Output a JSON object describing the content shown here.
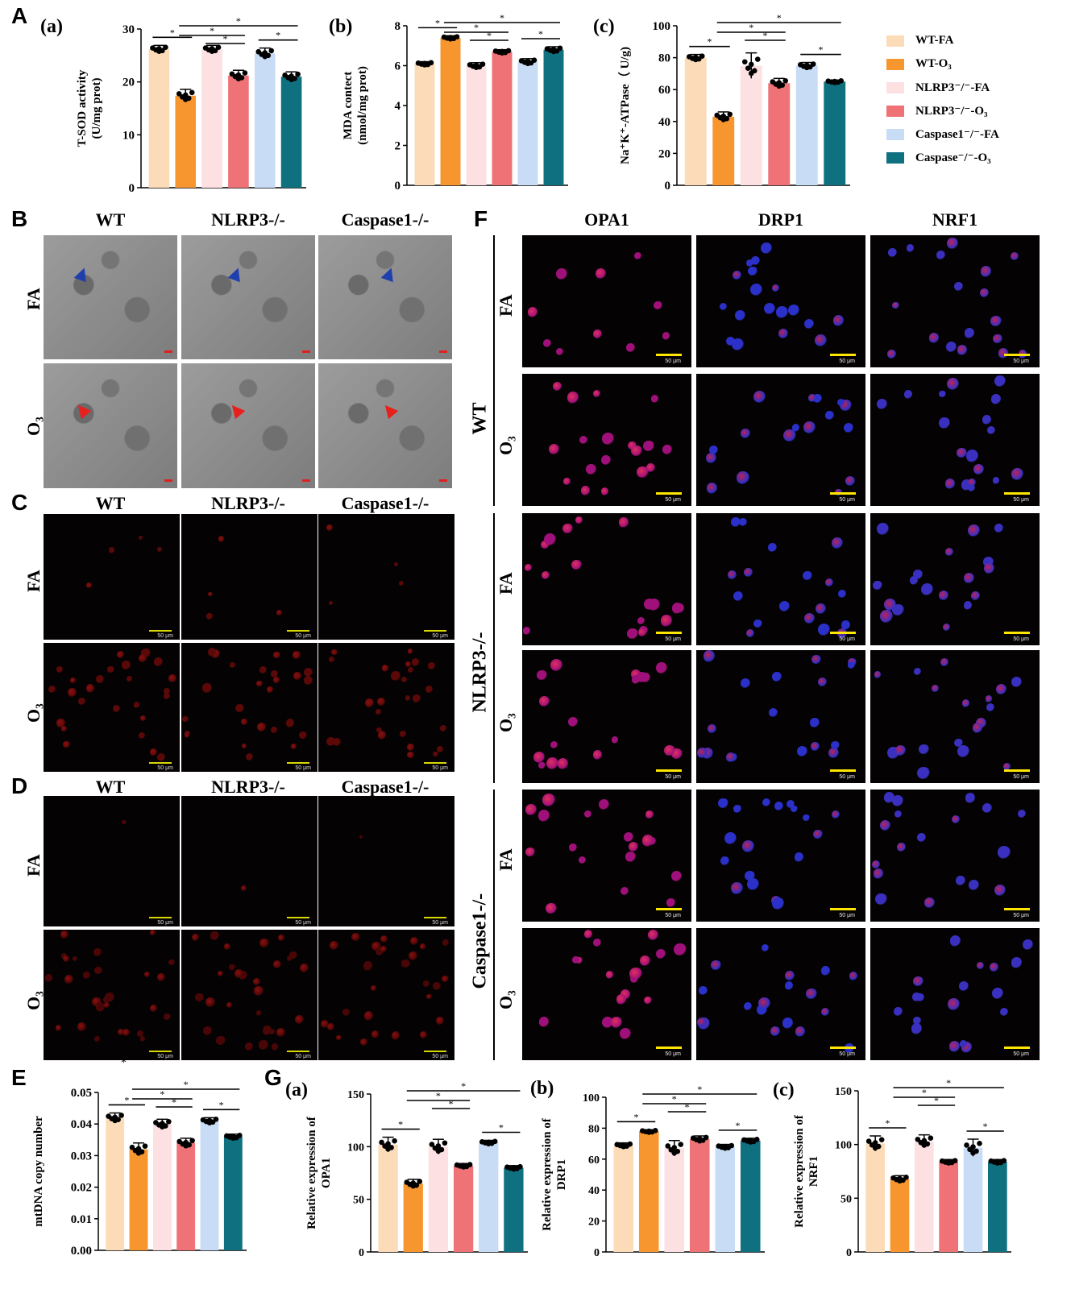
{
  "labels": {
    "A": "A",
    "B": "B",
    "C": "C",
    "D": "D",
    "E": "E",
    "F": "F",
    "G": "G"
  },
  "legend": [
    {
      "label": "WT-FA",
      "color": "#fcdcb8"
    },
    {
      "label": "WT-O₃",
      "color": "#f7962f"
    },
    {
      "label": "NLRP3⁻/⁻-FA",
      "color": "#fde0e2"
    },
    {
      "label": "NLRP3⁻/⁻-O₃",
      "color": "#ee7276"
    },
    {
      "label": "Caspase1⁻/⁻-FA",
      "color": "#c9dcf6"
    },
    {
      "label": "Caspase⁻/⁻-O₃",
      "color": "#0f7080"
    }
  ],
  "chart_data": [
    {
      "id": "Aa",
      "type": "bar",
      "sub": "(a)",
      "ylabel": [
        "T-SOD activity",
        "(U/mg prot)"
      ],
      "ylim": [
        0,
        30
      ],
      "ticks": [
        0,
        10,
        20,
        30
      ],
      "values": [
        26.2,
        17.4,
        26.2,
        21.2,
        25.4,
        21.0
      ],
      "err": [
        0.7,
        1.2,
        0.7,
        1.0,
        1.0,
        0.9
      ],
      "sig": [
        [
          0,
          1,
          0
        ],
        [
          1,
          5,
          3
        ],
        [
          1,
          3,
          2
        ],
        [
          2,
          3,
          1
        ],
        [
          4,
          5,
          0
        ]
      ]
    },
    {
      "id": "Ab",
      "type": "bar",
      "sub": "(b)",
      "ylabel": [
        "MDA contect",
        "(nmol/mg prot)"
      ],
      "ylim": [
        0,
        8
      ],
      "ticks": [
        0,
        2,
        4,
        6,
        8
      ],
      "values": [
        6.1,
        7.4,
        6.0,
        6.7,
        6.2,
        6.8
      ],
      "err": [
        0.1,
        0.1,
        0.15,
        0.1,
        0.15,
        0.15
      ],
      "sig": [
        [
          0,
          1,
          0
        ],
        [
          1,
          5,
          3
        ],
        [
          1,
          3,
          2
        ],
        [
          2,
          3,
          1
        ],
        [
          4,
          5,
          0
        ]
      ]
    },
    {
      "id": "Ac",
      "type": "bar",
      "sub": "(c)",
      "ylabel": [
        "Na⁺K⁺-ATPase（ U/g)"
      ],
      "ylim": [
        0,
        100
      ],
      "ticks": [
        0,
        20,
        40,
        60,
        80,
        100
      ],
      "values": [
        80,
        43,
        75,
        64,
        75,
        65
      ],
      "err": [
        2,
        3,
        8,
        3,
        2,
        1
      ],
      "sig": [
        [
          0,
          1,
          0
        ],
        [
          1,
          5,
          3
        ],
        [
          1,
          3,
          2
        ],
        [
          2,
          3,
          1
        ],
        [
          4,
          5,
          0
        ]
      ]
    },
    {
      "id": "E",
      "type": "bar",
      "sub": "",
      "ylabel": [
        "mtDNA copy number"
      ],
      "ylim": [
        0,
        0.05
      ],
      "ticks": [
        "0.00",
        "0.01",
        "0.02",
        "0.03",
        "0.04",
        "0.05"
      ],
      "values": [
        0.042,
        0.032,
        0.04,
        0.034,
        0.041,
        0.036
      ],
      "err": [
        0.0015,
        0.002,
        0.0015,
        0.0015,
        0.001,
        0.0008
      ],
      "sig": [
        [
          0,
          1,
          0
        ],
        [
          1,
          5,
          3
        ],
        [
          1,
          3,
          2
        ],
        [
          2,
          3,
          1
        ],
        [
          4,
          5,
          0
        ]
      ]
    },
    {
      "id": "Ga",
      "type": "bar",
      "sub": "(a)",
      "ylabel": [
        "Relative expression of",
        "OPA1"
      ],
      "ylim": [
        0,
        150
      ],
      "ticks": [
        0,
        50,
        100,
        150
      ],
      "values": [
        102,
        65,
        100,
        82,
        104,
        80
      ],
      "err": [
        7,
        4,
        7,
        2,
        2,
        2
      ],
      "sig": [
        [
          0,
          1,
          0
        ],
        [
          1,
          5,
          3
        ],
        [
          1,
          3,
          2
        ],
        [
          2,
          3,
          1
        ],
        [
          4,
          5,
          0
        ]
      ]
    },
    {
      "id": "Gb",
      "type": "bar",
      "sub": "(b)",
      "ylabel": [
        "Relative expression of",
        "DRP1"
      ],
      "ylim": [
        0,
        100
      ],
      "ticks": [
        0,
        20,
        40,
        60,
        80,
        100
      ],
      "values": [
        69,
        78,
        67,
        73,
        68,
        72
      ],
      "err": [
        1.5,
        1,
        5,
        2,
        1.5,
        1.5
      ],
      "sig": [
        [
          0,
          1,
          0
        ],
        [
          1,
          5,
          3
        ],
        [
          1,
          3,
          2
        ],
        [
          2,
          3,
          1
        ],
        [
          4,
          5,
          0
        ]
      ]
    },
    {
      "id": "Gc",
      "type": "bar",
      "sub": "(c)",
      "ylabel": [
        "Relative expression of",
        "NRF1"
      ],
      "ylim": [
        0,
        150
      ],
      "ticks": [
        0,
        50,
        100,
        150
      ],
      "values": [
        101,
        68,
        103,
        84,
        97,
        84
      ],
      "err": [
        7,
        3,
        6,
        2,
        8,
        2
      ],
      "sig": [
        [
          0,
          1,
          0
        ],
        [
          1,
          5,
          3
        ],
        [
          1,
          3,
          2
        ],
        [
          2,
          3,
          1
        ],
        [
          4,
          5,
          0
        ]
      ]
    }
  ],
  "panelB": {
    "cols": [
      "WT",
      "NLRP3-/-",
      "Caspase1-/-"
    ],
    "rows": [
      "FA",
      "O₃"
    ]
  },
  "panelC": {
    "cols": [
      "WT",
      "NLRP3-/-",
      "Caspase1-/-"
    ],
    "rows": [
      "FA",
      "O₃"
    ]
  },
  "panelD": {
    "cols": [
      "WT",
      "NLRP3-/-",
      "Caspase1-/-"
    ],
    "rows": [
      "FA",
      "O₃"
    ]
  },
  "panelF": {
    "cols": [
      "OPA1",
      "DRP1",
      "NRF1"
    ],
    "groups": [
      "WT",
      "NLRP3-/-",
      "Caspase1-/-"
    ],
    "rows": [
      "FA",
      "O₃"
    ],
    "scale": "50 μm"
  },
  "scale_small": "50 μm",
  "stray_star": "*"
}
